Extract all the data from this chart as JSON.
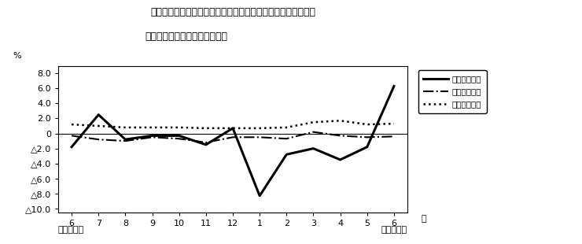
{
  "title_line1": "第４図　賃金、労働時間、常用雇用指数　対前年同月比の推移",
  "title_line2": "（規模５人以上　調査産業計）",
  "xlabel_left": "平成２３年",
  "xlabel_right": "平成２４年",
  "ylabel": "%",
  "x_labels": [
    "6",
    "7",
    "8",
    "9",
    "10",
    "11",
    "12",
    "1",
    "2",
    "3",
    "4",
    "5",
    "6"
  ],
  "x_label_extra": "月",
  "ylim": [
    -10.5,
    9.0
  ],
  "yticks": [
    8.0,
    6.0,
    4.0,
    2.0,
    0.0,
    -2.0,
    -4.0,
    -6.0,
    -8.0,
    -10.0
  ],
  "ytick_labels": [
    "8.0",
    "6.0",
    "4.0",
    "2.0",
    "0",
    "△2.0",
    "△4.0",
    "△6.0",
    "△8.0",
    "△10.0"
  ],
  "series": {
    "現金給与総額": {
      "values": [
        -1.8,
        2.5,
        -0.8,
        -0.3,
        -0.3,
        -1.5,
        0.7,
        -8.3,
        -2.8,
        -2.0,
        -3.5,
        -1.8,
        6.3
      ],
      "linestyle": "solid",
      "linewidth": 2.2,
      "color": "#000000"
    },
    "総実労働時間": {
      "values": [
        -0.3,
        -0.8,
        -1.0,
        -0.5,
        -0.7,
        -1.2,
        -0.5,
        -0.5,
        -0.7,
        0.2,
        -0.3,
        -0.5,
        -0.4
      ],
      "linestyle": "dashdot",
      "linewidth": 1.5,
      "color": "#000000"
    },
    "常用雇用指数": {
      "values": [
        1.2,
        1.0,
        0.8,
        0.8,
        0.8,
        0.7,
        0.7,
        0.7,
        0.8,
        1.5,
        1.7,
        1.2,
        1.3
      ],
      "linestyle": "dotted",
      "linewidth": 1.8,
      "color": "#000000"
    }
  },
  "background_color": "#ffffff"
}
